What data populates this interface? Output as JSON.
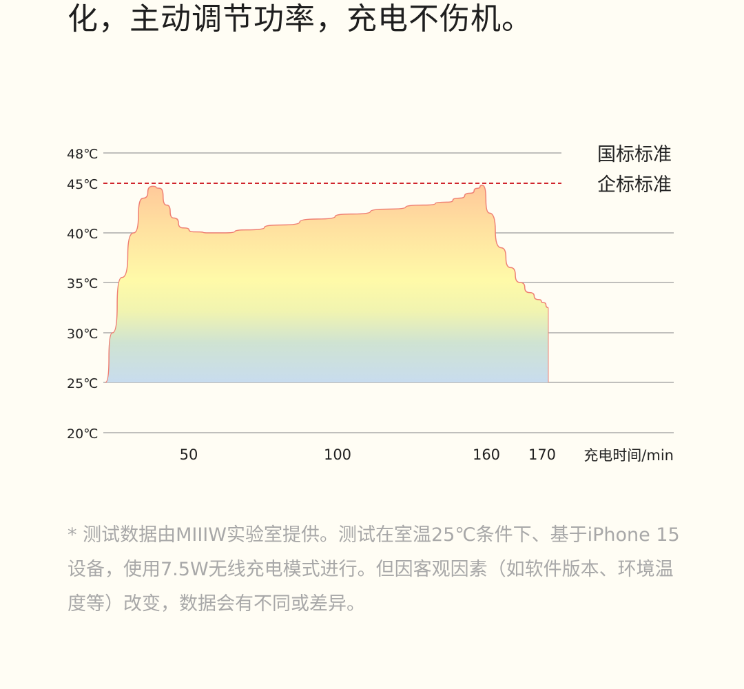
{
  "headline": "化，主动调节功率，充电不伤机。",
  "chart_data": {
    "type": "area",
    "xlabel": "充电时间/min",
    "ylabel": "",
    "ylim": [
      20,
      48
    ],
    "y_ticks": [
      "48℃",
      "45℃",
      "40℃",
      "35℃",
      "30℃",
      "25℃",
      "20℃"
    ],
    "y_tick_values": [
      48,
      45,
      40,
      35,
      30,
      25,
      20
    ],
    "x_ticks": [
      "50",
      "100",
      "160",
      "170"
    ],
    "grid": true,
    "reference_lines": [
      {
        "label": "国标标准",
        "value": 48,
        "style": "solid",
        "color": "#9a9a9a"
      },
      {
        "label": "企标标准",
        "value": 45,
        "style": "dashed",
        "color": "#d0252d"
      }
    ],
    "series": [
      {
        "x": [
          0,
          3,
          7,
          12,
          16,
          20,
          23,
          26,
          29,
          33,
          38,
          45,
          50,
          60,
          75,
          90,
          105,
          120,
          135,
          145,
          150,
          155,
          158,
          160,
          163,
          168,
          172,
          176,
          180,
          184,
          186,
          188
        ],
        "values": [
          25,
          30,
          35.5,
          40,
          43.5,
          44.7,
          44.5,
          42.8,
          41.5,
          40.5,
          40.1,
          40,
          40,
          40.3,
          40.8,
          41.4,
          41.9,
          42.4,
          42.8,
          43.1,
          43.5,
          44,
          44.5,
          44.8,
          42,
          38.5,
          36.5,
          35,
          34,
          33.3,
          33,
          32.5
        ]
      }
    ]
  },
  "footnote": "* 测试数据由MIIIW实验室提供。测试在室温25℃条件下、基于iPhone 15设备，使用7.5W无线充电模式进行。但因客观因素（如软件版本、环境温度等）改变，数据会有不同或差异。",
  "colors": {
    "background": "#fffdf4",
    "curve_stroke": "#ef7f73",
    "dashed_line": "#d0252d",
    "grid": "#9a9a9a"
  }
}
